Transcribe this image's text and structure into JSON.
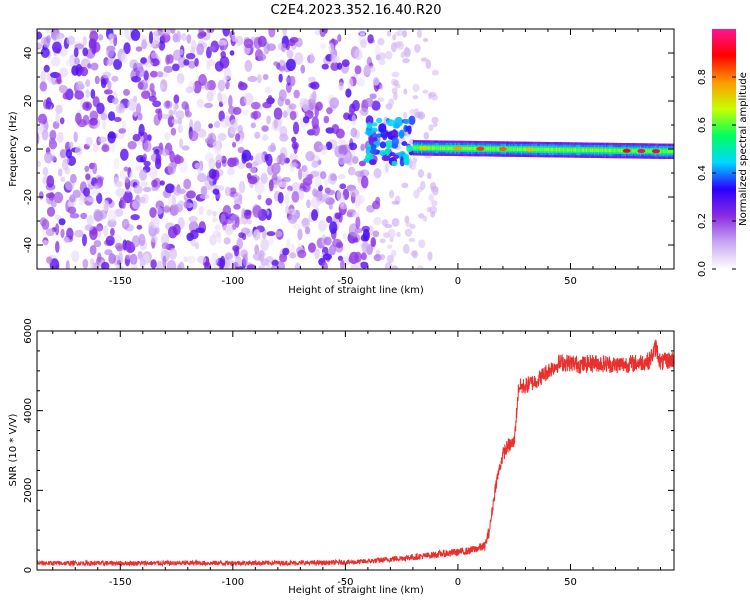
{
  "title": "C2E4.2023.352.16.40.R20",
  "chart_data": [
    {
      "type": "heatmap",
      "xlabel": "Height of straight line (km)",
      "ylabel": "Frequency (Hz)",
      "xlim": [
        -187,
        96
      ],
      "ylim": [
        -50,
        50
      ],
      "x_ticks": [
        -150,
        -100,
        -50,
        0,
        50
      ],
      "y_ticks": [
        -40,
        -20,
        0,
        20,
        40
      ],
      "colorbar": {
        "label": "Normalized spectral amplitude",
        "range": [
          0,
          1
        ],
        "ticks": [
          0.0,
          0.2,
          0.4,
          0.6,
          0.8
        ],
        "colors": [
          "#ffffff",
          "#c9a6f2",
          "#8a2be2",
          "#2a00ff",
          "#00d8ff",
          "#00ff60",
          "#c8ff00",
          "#ff9a00",
          "#ff0000",
          "#ff1493"
        ]
      },
      "features": {
        "noise_region_x": [
          -187,
          -35
        ],
        "transition_x": [
          -40,
          -20
        ],
        "carrier_band_x": [
          -20,
          96
        ],
        "carrier_band_freq_hz": [
          -3,
          3
        ],
        "peak_x": [
          75,
          88
        ]
      }
    },
    {
      "type": "line",
      "xlabel": "Height of straight line (km)",
      "ylabel": "SNR (10 * V/V)",
      "xlim": [
        -187,
        96
      ],
      "ylim": [
        0,
        6000
      ],
      "x_ticks": [
        -150,
        -100,
        -50,
        0,
        50
      ],
      "y_ticks": [
        0,
        2000,
        4000,
        6000
      ],
      "color": "#e8312e",
      "x": [
        -187,
        -150,
        -100,
        -60,
        -45,
        -35,
        -25,
        -15,
        -5,
        5,
        12,
        14,
        17,
        20,
        22,
        25,
        27,
        29,
        31,
        33,
        36,
        40,
        45,
        50,
        55,
        60,
        65,
        70,
        75,
        80,
        85,
        88,
        90,
        93,
        96
      ],
      "y": [
        170,
        170,
        175,
        180,
        200,
        240,
        300,
        350,
        420,
        480,
        600,
        1000,
        2200,
        2900,
        3100,
        3200,
        4600,
        4600,
        4650,
        4700,
        4800,
        5000,
        5200,
        5200,
        5150,
        5200,
        5180,
        5150,
        5170,
        5200,
        5250,
        5600,
        5200,
        5250,
        5300
      ]
    }
  ]
}
